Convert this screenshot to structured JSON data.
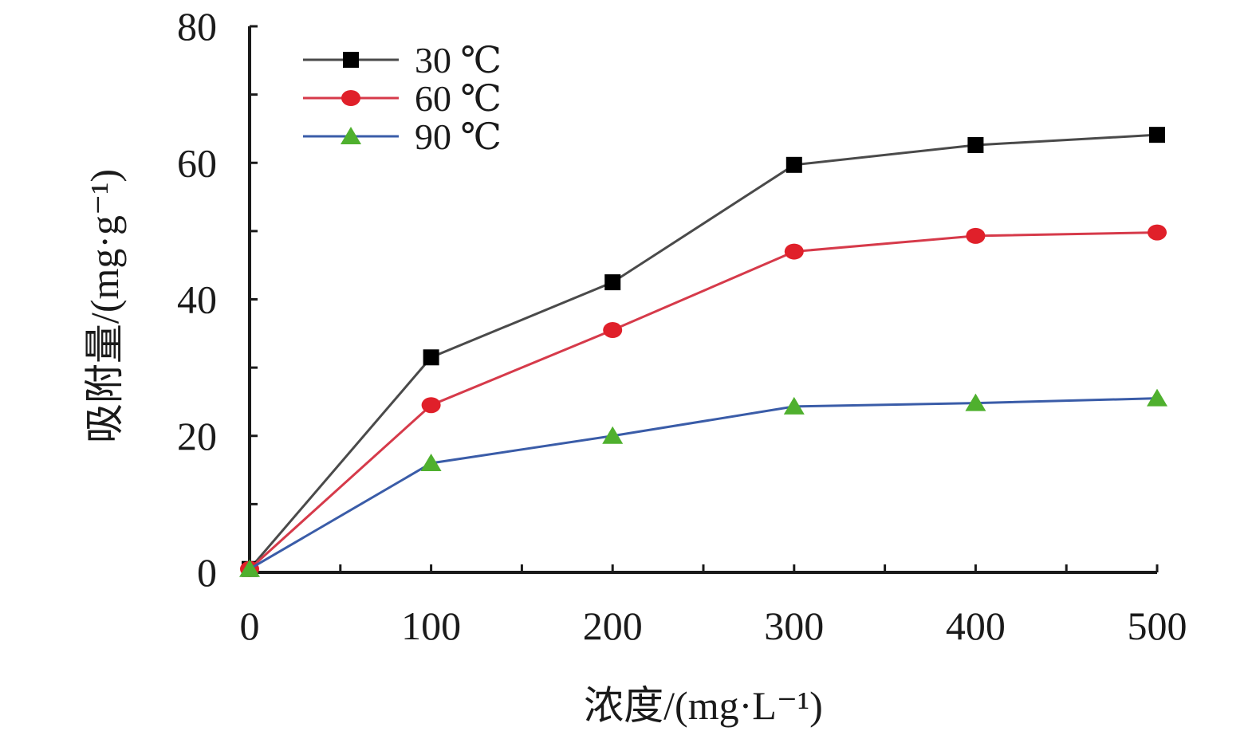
{
  "chart_data": {
    "type": "line",
    "xlabel": "浓度/(mg·L⁻¹)",
    "ylabel": "吸附量/(mg·g⁻¹)",
    "xlim": [
      0,
      500
    ],
    "ylim": [
      0,
      80
    ],
    "x_ticks": [
      "0",
      "100",
      "200",
      "300",
      "400",
      "500"
    ],
    "y_ticks": [
      "0",
      "20",
      "40",
      "60",
      "80"
    ],
    "x": [
      0,
      100,
      200,
      300,
      400,
      500
    ],
    "grid": false,
    "legend_position": "top-left",
    "series": [
      {
        "name": "30 ℃",
        "marker": "square",
        "line_color": "#4a4a4a",
        "marker_color": "#000000",
        "values": [
          0.5,
          31.5,
          42.5,
          59.7,
          62.6,
          64.1
        ]
      },
      {
        "name": "60 ℃",
        "marker": "circle",
        "line_color": "#d63a4a",
        "marker_color": "#e0202a",
        "values": [
          0.5,
          24.5,
          35.5,
          47.0,
          49.3,
          49.8
        ]
      },
      {
        "name": "90 ℃",
        "marker": "triangle",
        "line_color": "#3a5ca8",
        "marker_color": "#4fb02e",
        "values": [
          0.5,
          16.0,
          20.0,
          24.3,
          24.8,
          25.5
        ]
      }
    ]
  }
}
